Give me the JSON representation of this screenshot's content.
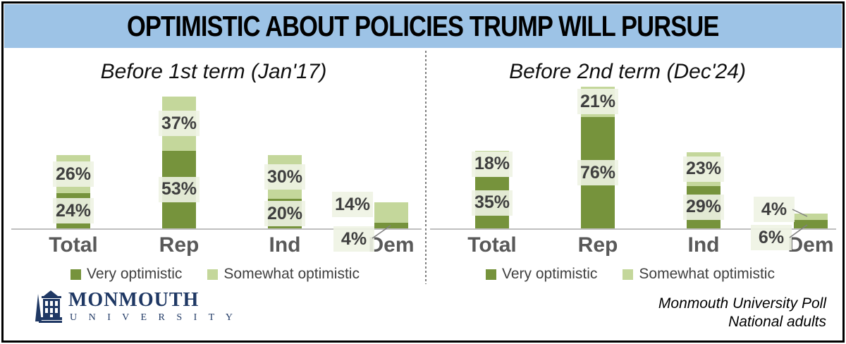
{
  "title": "OPTIMISTIC ABOUT POLICIES TRUMP WILL PURSUE",
  "chart_data": [
    {
      "type": "bar",
      "stacked": true,
      "title": "Before 1st term (Jan'17)",
      "categories": [
        "Total",
        "Rep",
        "Ind",
        "Dem"
      ],
      "series": [
        {
          "name": "Very optimistic",
          "values": [
            24,
            53,
            20,
            4
          ]
        },
        {
          "name": "Somewhat optimistic",
          "values": [
            26,
            37,
            30,
            14
          ]
        }
      ],
      "data_label_format": "value%",
      "ylim": [
        0,
        100
      ],
      "grid": false,
      "legend_position": "bottom"
    },
    {
      "type": "bar",
      "stacked": true,
      "title": "Before 2nd term (Dec'24)",
      "categories": [
        "Total",
        "Rep",
        "Ind",
        "Dem"
      ],
      "series": [
        {
          "name": "Very optimistic",
          "values": [
            35,
            76,
            29,
            6
          ]
        },
        {
          "name": "Somewhat optimistic",
          "values": [
            18,
            21,
            23,
            4
          ]
        }
      ],
      "data_label_format": "value%",
      "ylim": [
        0,
        100
      ],
      "grid": false,
      "legend_position": "bottom"
    }
  ],
  "legend": {
    "very": "Very optimistic",
    "somewhat": "Somewhat optimistic"
  },
  "colors": {
    "very": "#76933C",
    "somewhat": "#C4D79B",
    "title_bg": "#9DC3E6",
    "label_box": "#EEF3E3",
    "axis": "#BFBFBF",
    "navy": "#1F3864"
  },
  "logo": {
    "name": "MONMOUTH",
    "sub": "U N I V E R S I T Y"
  },
  "source": {
    "line1": "Monmouth University Poll",
    "line2": "National adults"
  }
}
